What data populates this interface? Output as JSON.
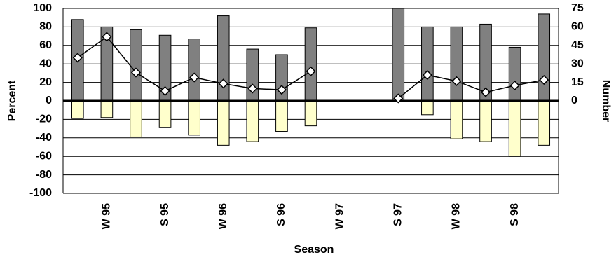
{
  "chart_data": {
    "type": "bar",
    "x_label": "Season",
    "y_label": "Percent",
    "y2_label": "Number",
    "categories": [
      null,
      "W 95",
      null,
      "S 95",
      null,
      "W 96",
      null,
      "S 96",
      null,
      "W 97",
      null,
      "S 97",
      null,
      "W 98",
      null,
      "S 98",
      null
    ],
    "series": [
      {
        "color": "#808080",
        "values": [
          88,
          80,
          77,
          71,
          67,
          92,
          56,
          50,
          79,
          null,
          null,
          100,
          80,
          80,
          83,
          58,
          94
        ]
      },
      {
        "color": "#ffffcc",
        "values": [
          -19,
          -18,
          -39,
          -29,
          -37,
          -48,
          -44,
          -33,
          -27,
          null,
          null,
          null,
          -15,
          -41,
          -44,
          -60,
          -48
        ]
      },
      {
        "type": "line",
        "axis": "y2",
        "color": "#000000",
        "marker_color": "#ffffff",
        "values": [
          35,
          52,
          23,
          8,
          19,
          14,
          10,
          9,
          24,
          null,
          null,
          2,
          21,
          16,
          7,
          12.5,
          17
        ]
      }
    ],
    "ylim": [
      -100,
      100
    ],
    "yticks": [
      -100,
      -80,
      -60,
      -40,
      -20,
      0,
      20,
      40,
      60,
      80,
      100
    ],
    "y2lim": [
      -75,
      75
    ],
    "y2ticks": [
      0,
      15,
      30,
      45,
      60,
      75
    ],
    "grid": true
  }
}
